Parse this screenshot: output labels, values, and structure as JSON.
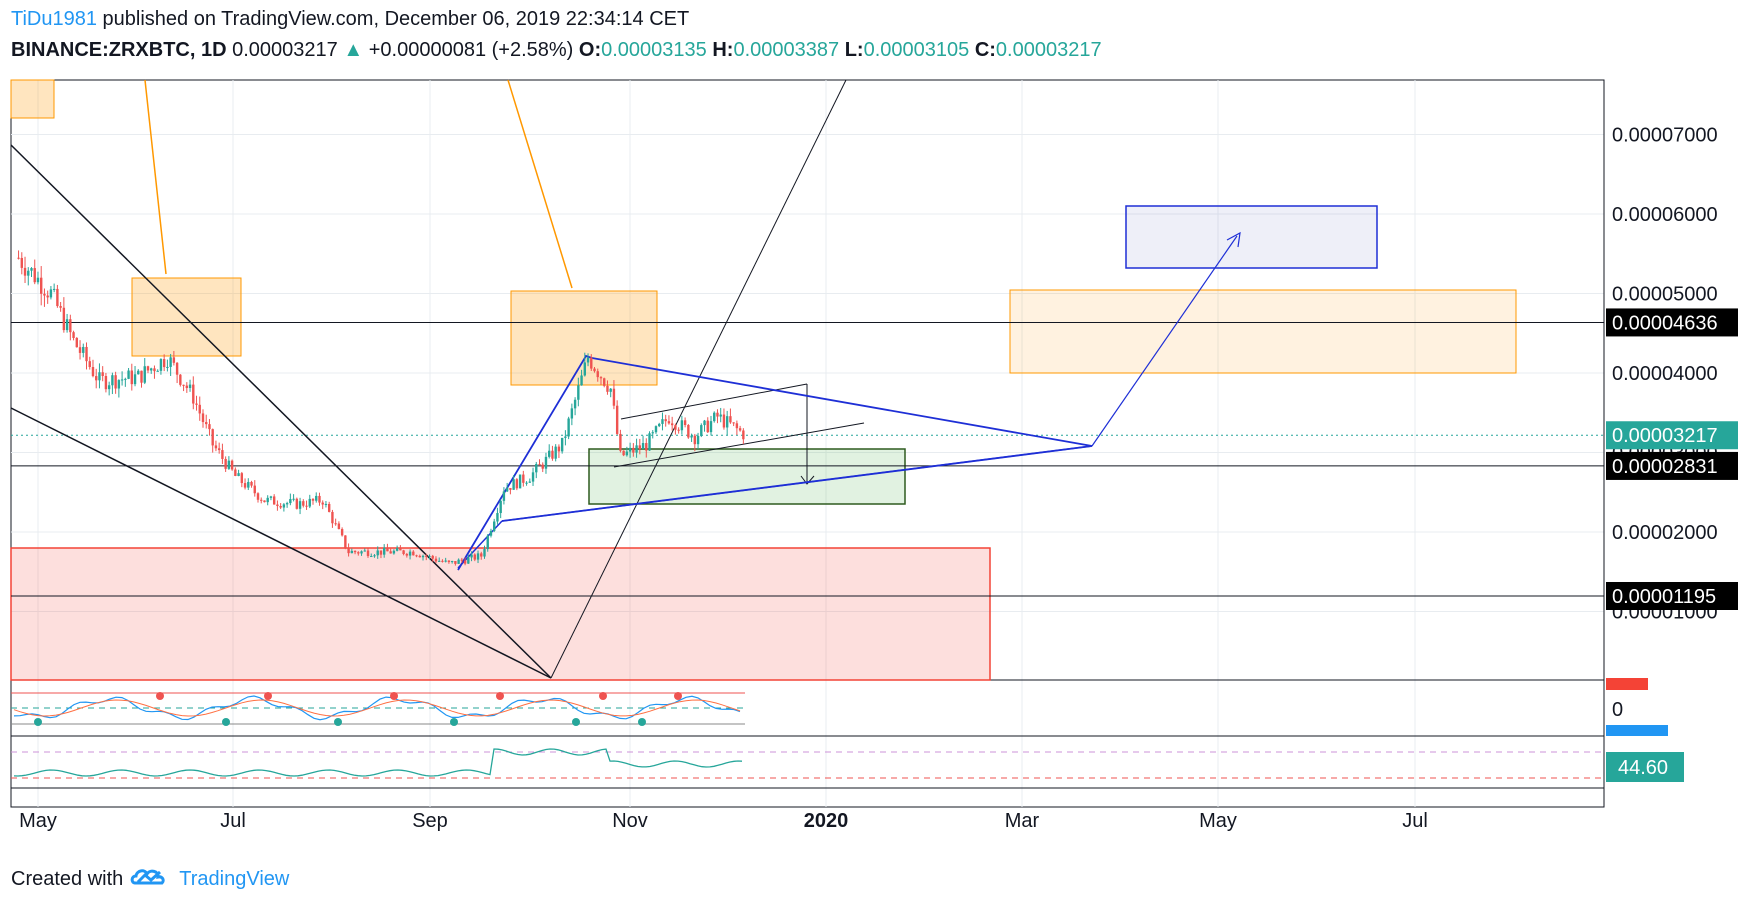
{
  "header": {
    "author": "TiDu1981",
    "published": "published on TradingView.com, December 06, 2019 22:34:14 CET",
    "symbol": "BINANCE:ZRXBTC, 1D",
    "last": "0.00003217",
    "change": "+0.00000081 (+2.58%)",
    "o_label": "O:",
    "o_value": "0.00003135",
    "h_label": "H:",
    "h_value": "0.00003387",
    "l_label": "L:",
    "l_value": "0.00003105",
    "c_label": "C:",
    "c_value": "0.00003217"
  },
  "footer": {
    "created_with": "Created with",
    "brand": "TradingView"
  },
  "chart_data": {
    "type": "candlestick",
    "symbol": "BINANCE:ZRXBTC",
    "interval": "1D",
    "x_tick_labels": [
      "May",
      "Jul",
      "Sep",
      "Nov",
      "2020",
      "Mar",
      "May",
      "Jul"
    ],
    "y_tick_labels": [
      "0.00007000",
      "0.00006000",
      "0.00005000",
      "0.00004000",
      "0.00003000",
      "0.00002000",
      "0.00001000"
    ],
    "ylim": [
      3e-06,
      8e-05
    ],
    "price_tags": [
      {
        "label": "0.00004636",
        "value": 4.636e-05,
        "style": "dark"
      },
      {
        "label": "0.00003217",
        "value": 3.217e-05,
        "style": "green"
      },
      {
        "label": "0.00002831",
        "value": 2.831e-05,
        "style": "dark"
      },
      {
        "label": "0.00001195",
        "value": 1.195e-05,
        "style": "dark"
      }
    ],
    "close_series_approx": [
      {
        "date": "2019-04-25",
        "close": 5.45e-05
      },
      {
        "date": "2019-05-05",
        "close": 5e-05
      },
      {
        "date": "2019-05-12",
        "close": 4.4e-05
      },
      {
        "date": "2019-05-20",
        "close": 3.9e-05
      },
      {
        "date": "2019-06-01",
        "close": 3.95e-05
      },
      {
        "date": "2019-06-10",
        "close": 4.2e-05
      },
      {
        "date": "2019-06-18",
        "close": 3.7e-05
      },
      {
        "date": "2019-06-24",
        "close": 3.1e-05
      },
      {
        "date": "2019-07-01",
        "close": 2.7e-05
      },
      {
        "date": "2019-07-10",
        "close": 2.4e-05
      },
      {
        "date": "2019-07-20",
        "close": 2.35e-05
      },
      {
        "date": "2019-07-28",
        "close": 2.4e-05
      },
      {
        "date": "2019-08-05",
        "close": 1.75e-05
      },
      {
        "date": "2019-08-15",
        "close": 1.75e-05
      },
      {
        "date": "2019-08-25",
        "close": 1.75e-05
      },
      {
        "date": "2019-09-05",
        "close": 1.6e-05
      },
      {
        "date": "2019-09-15",
        "close": 1.7e-05
      },
      {
        "date": "2019-09-22",
        "close": 2.55e-05
      },
      {
        "date": "2019-09-30",
        "close": 2.7e-05
      },
      {
        "date": "2019-10-10",
        "close": 3.1e-05
      },
      {
        "date": "2019-10-18",
        "close": 4.2e-05
      },
      {
        "date": "2019-10-25",
        "close": 3.8e-05
      },
      {
        "date": "2019-10-28",
        "close": 2.95e-05
      },
      {
        "date": "2019-11-05",
        "close": 3.1e-05
      },
      {
        "date": "2019-11-12",
        "close": 3.45e-05
      },
      {
        "date": "2019-11-20",
        "close": 3.2e-05
      },
      {
        "date": "2019-11-27",
        "close": 3.45e-05
      },
      {
        "date": "2019-12-06",
        "close": 3.21e-05
      }
    ],
    "indicator_1": {
      "zero_label": "0"
    },
    "indicator_2": {
      "value_label": "44.60"
    },
    "grid": true
  },
  "colors": {
    "up": "#26a69a",
    "down": "#ef5350",
    "orange": "#ff9800",
    "blue": "#1e2fd6",
    "green_zone": "#4caf50",
    "red_zone": "#f44336",
    "tag_dark": "#000000",
    "tag_green": "#26a69a"
  }
}
